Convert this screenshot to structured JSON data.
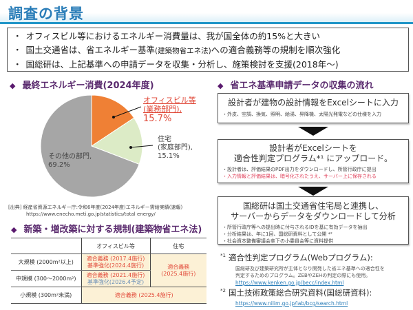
{
  "header": {
    "title": "調査の背景",
    "accent_color": "#2196c8"
  },
  "summary": {
    "bullet": "・",
    "lines": [
      {
        "main": "オフィスビル等におけるエネルギー消費量は、我が国全体の約15%と大きい",
        "small": "",
        "tail": ""
      },
      {
        "main": "国土交通省は、省エネルギー基準",
        "small": "(建築物省エネ法)",
        "tail": "への適合義務等の規制を順次強化"
      },
      {
        "main": "国総研は、上記基準への申請データを収集・分析し、施策検討を支援(2018年～)",
        "small": "",
        "tail": ""
      }
    ]
  },
  "pie_section": {
    "diamond": "◆",
    "title": "最終エネルギー消費(2024年度)"
  },
  "chart_data": {
    "type": "pie",
    "title": "最終エネルギー消費(2024年度)",
    "categories": [
      "オフィスビル等(業務部門)",
      "住宅(家庭部門)",
      "その他の部門"
    ],
    "values": [
      15.7,
      15.1,
      69.2
    ],
    "colors": [
      "#ef8035",
      "#dcebc6",
      "#a6a6a6"
    ],
    "labels": {
      "office": {
        "line1": "オフィスビル等",
        "line2": "(業務部門),",
        "pct": "15.7%"
      },
      "home": {
        "line1": "住宅",
        "line2": "(家庭部門),",
        "pct": "15.1%"
      },
      "other": {
        "line1": "その他の部門,",
        "pct": "69.2%"
      }
    }
  },
  "source": {
    "line1": "[出典] 経産省資源エネルギー庁:令和6年度(2024年度)エネルギー需給実績(速報)",
    "url": "https://www.enecho.meti.go.jp/statistics/total energy/"
  },
  "regulation": {
    "diamond": "◆",
    "title": "新築・増改築に対する規制(建築物省エネ法)",
    "headers": [
      "",
      "オフィスビル等",
      "住宅"
    ],
    "rows": [
      {
        "size": "大規模 (2000m²以上)",
        "office_red": "適合義務 (2017.4施行)",
        "office_second": "基準強化(2024.4施行)",
        "office_second_color": "red"
      },
      {
        "size": "中規模 (300～2000m²)",
        "office_red": "適合義務 (2021.4施行)",
        "office_second": "基準強化(2026.4予定)",
        "office_second_color": "blue"
      },
      {
        "size": "小規模 (300m²未満)",
        "merged": "適合義務 (2025.4施行)"
      }
    ],
    "housing_merged": {
      "line1": "適合義務",
      "line2": "(2025.4施行)"
    }
  },
  "flow": {
    "diamond": "◆",
    "title": "省エネ基準申請データの収集の流れ",
    "steps": [
      {
        "main": "設計者が建物の設計情報をExcelシートに入力",
        "subs": [
          "・外皮、空調、換気、照明、給湯、昇降機、太陽光発電などの仕様を入力"
        ]
      },
      {
        "main1": "設計者がExcelシートを",
        "main2": "適合性判定プログラム*¹ にアップロード。",
        "sub1": "・設計者は、評価結果のPDF出力をダウンロードし、所管行政庁に提出",
        "sub2": "・入力情報と評価結果は、暗号化されたうえ、サーバー上に保存される"
      },
      {
        "main1": "国総研は国土交通省住宅局と連携し、",
        "main2": "サーバーからデータをダウンロードして分析",
        "subs": [
          "・所管行政庁等への提出時に付与されるIDを基に有効データを抽出",
          "・分析結果は、年に1回、国総研資料として公開 *²",
          "・社会資本整備審議会傘下の小委員会等に資料提供"
        ]
      }
    ]
  },
  "footnotes": [
    {
      "mark": "*1",
      "title": "適合性判定プログラム(Webプログラム):",
      "desc1": "国総研及び建築研究所が主体となり開発した省エネ基準への適合性を",
      "desc2": "判定するためのプログラム。ZEBやZEHの判定の際にも使用。",
      "link": "https://www.kenken.go.jp/becc/index.html"
    },
    {
      "mark": "*2",
      "title": "国土技術政策総合研究資料(国総研資料):",
      "link": "https://www.nilim.go.jp/lab/bcg/search.html"
    }
  ]
}
